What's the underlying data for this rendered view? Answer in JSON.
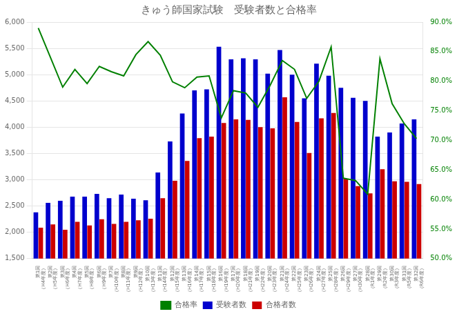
{
  "chart_data": {
    "type": "bar",
    "title": "きゅう師国家試験　受験者数と合格率",
    "categories": [
      "第1回\n（H4年度）",
      "第2回\n（H5年度）",
      "第3回\n（H6年度）",
      "第4回\n（H7年度）",
      "第5回\n（H8年度）",
      "第6回\n（H9年度）",
      "第7回\n（H10年度）",
      "第8回\n（H11年度）",
      "第9回\n（H12年度）",
      "第10回\n（H13年度）",
      "第11回\n（H14年度）",
      "第12回\n（H15年度）",
      "第13回\n（H16年度）",
      "第14回\n（H17年度）",
      "第15回\n（H18年度）",
      "第16回\n（H19年度）",
      "第17回\n（H20年度）",
      "第18回\n（H21年度）",
      "第19回\n（H22年度）",
      "第20回\n（H23年度）",
      "第21回\n（H24年度）",
      "第22回\n（H25年度）",
      "第23回\n（H26年度）",
      "第24回\n（H27年度）",
      "第25回\n（H28年度）",
      "第26回\n（H29年度）",
      "第27回\n（H30年度）",
      "第28回\n（R1年度）",
      "第29回\n（R2年度）",
      "第30回\n（R3年度）",
      "第31回\n（R5年度）",
      "第32回\n（R6年度）"
    ],
    "series": [
      {
        "name": "受験者数",
        "color": "#0000CD",
        "values": [
          2380,
          2560,
          2600,
          2680,
          2680,
          2730,
          2650,
          2720,
          2640,
          2610,
          3140,
          3730,
          4260,
          4700,
          4720,
          5530,
          5290,
          5310,
          5290,
          5020,
          5470,
          5000,
          4550,
          5210,
          4980,
          4750,
          4560,
          4500,
          3820,
          3900,
          4070,
          4150
        ]
      },
      {
        "name": "合格者数",
        "color": "#CC0000",
        "values": [
          2090,
          2150,
          2050,
          2200,
          2130,
          2250,
          2160,
          2200,
          2230,
          2260,
          2650,
          2980,
          3360,
          3790,
          3820,
          4080,
          4150,
          4140,
          4000,
          3980,
          4570,
          4100,
          3510,
          4170,
          4270,
          3020,
          2880,
          2740,
          3200,
          2970,
          2960,
          2920
        ]
      },
      {
        "name": "合格率",
        "type": "line",
        "color": "#008000",
        "axis": "y2",
        "marker": "none",
        "values": [
          0.89,
          0.84,
          0.79,
          0.82,
          0.796,
          0.825,
          0.816,
          0.809,
          0.845,
          0.867,
          0.844,
          0.799,
          0.789,
          0.807,
          0.809,
          0.738,
          0.784,
          0.78,
          0.756,
          0.793,
          0.835,
          0.82,
          0.771,
          0.8,
          0.858,
          0.636,
          0.632,
          0.609,
          0.838,
          0.762,
          0.728,
          0.703
        ]
      }
    ],
    "ylim": [
      1500,
      6000
    ],
    "yticks": [
      {
        "value": 1500,
        "label": "1,500"
      },
      {
        "value": 2000,
        "label": "2,000"
      },
      {
        "value": 2500,
        "label": "2,500"
      },
      {
        "value": 3000,
        "label": "3,000"
      },
      {
        "value": 3500,
        "label": "3,500"
      },
      {
        "value": 4000,
        "label": "4,000"
      },
      {
        "value": 4500,
        "label": "4,500"
      },
      {
        "value": 5000,
        "label": "5,000"
      },
      {
        "value": 5500,
        "label": "5,500"
      },
      {
        "value": 6000,
        "label": "6,000"
      }
    ],
    "y2lim": [
      0.5,
      0.9
    ],
    "y2ticks": [
      {
        "value": 0.5,
        "label": "50.0%"
      },
      {
        "value": 0.55,
        "label": "55.0%"
      },
      {
        "value": 0.6,
        "label": "60.0%"
      },
      {
        "value": 0.65,
        "label": "65.0%"
      },
      {
        "value": 0.7,
        "label": "70.0%"
      },
      {
        "value": 0.75,
        "label": "75.0%"
      },
      {
        "value": 0.8,
        "label": "80.0%"
      },
      {
        "value": 0.85,
        "label": "85.0%"
      },
      {
        "value": 0.9,
        "label": "90.0%"
      }
    ],
    "grid": true,
    "legend": "bottom"
  }
}
